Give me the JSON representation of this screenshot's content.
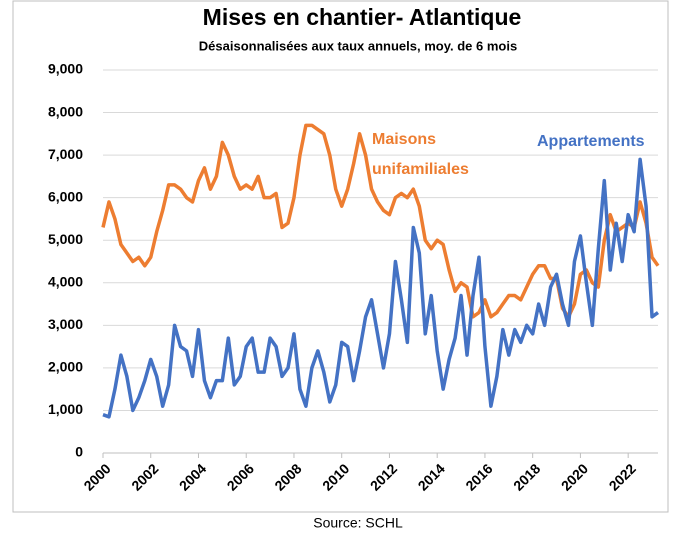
{
  "chart_data": {
    "type": "line",
    "title": "Mises en chantier- Atlantique",
    "subtitle": "Désaisonnalisées aux taux annuels, moy. de 6 mois",
    "source": "Source: SCHL",
    "x": [
      2000,
      2000.25,
      2000.5,
      2000.75,
      2001,
      2001.25,
      2001.5,
      2001.75,
      2002,
      2002.25,
      2002.5,
      2002.75,
      2003,
      2003.25,
      2003.5,
      2003.75,
      2004,
      2004.25,
      2004.5,
      2004.75,
      2005,
      2005.25,
      2005.5,
      2005.75,
      2006,
      2006.25,
      2006.5,
      2006.75,
      2007,
      2007.25,
      2007.5,
      2007.75,
      2008,
      2008.25,
      2008.5,
      2008.75,
      2009,
      2009.25,
      2009.5,
      2009.75,
      2010,
      2010.25,
      2010.5,
      2010.75,
      2011,
      2011.25,
      2011.5,
      2011.75,
      2012,
      2012.25,
      2012.5,
      2012.75,
      2013,
      2013.25,
      2013.5,
      2013.75,
      2014,
      2014.25,
      2014.5,
      2014.75,
      2015,
      2015.25,
      2015.5,
      2015.75,
      2016,
      2016.25,
      2016.5,
      2016.75,
      2017,
      2017.25,
      2017.5,
      2017.75,
      2018,
      2018.25,
      2018.5,
      2018.75,
      2019,
      2019.25,
      2019.5,
      2019.75,
      2020,
      2020.25,
      2020.5,
      2020.75,
      2021,
      2021.25,
      2021.5,
      2021.75,
      2022,
      2022.25,
      2022.5,
      2022.75,
      2023,
      2023.25
    ],
    "series": [
      {
        "name": "Maisons unifamiliales",
        "color": "#ed7d31",
        "values": [
          5300,
          5900,
          5500,
          4900,
          4700,
          4500,
          4600,
          4400,
          4600,
          5200,
          5700,
          6300,
          6300,
          6200,
          6000,
          5900,
          6400,
          6700,
          6200,
          6500,
          7300,
          7000,
          6500,
          6200,
          6300,
          6200,
          6500,
          6000,
          6000,
          6100,
          5300,
          5400,
          6000,
          7000,
          7700,
          7700,
          7600,
          7500,
          7000,
          6200,
          5800,
          6200,
          6800,
          7500,
          7000,
          6200,
          5900,
          5700,
          5600,
          6000,
          6100,
          6000,
          6200,
          5800,
          5000,
          4800,
          5000,
          4900,
          4300,
          3800,
          4000,
          3900,
          3200,
          3300,
          3600,
          3200,
          3300,
          3500,
          3700,
          3700,
          3600,
          3900,
          4200,
          4400,
          4400,
          4100,
          4100,
          3400,
          3200,
          3500,
          4200,
          4300,
          4000,
          3900,
          5000,
          5600,
          5200,
          5300,
          5400,
          5300,
          5900,
          5400,
          4600,
          4400
        ]
      },
      {
        "name": "Appartements",
        "color": "#4472c4",
        "values": [
          900,
          850,
          1500,
          2300,
          1800,
          1000,
          1300,
          1700,
          2200,
          1800,
          1100,
          1600,
          3000,
          2500,
          2400,
          1800,
          2900,
          1700,
          1300,
          1700,
          1700,
          2700,
          1600,
          1800,
          2500,
          2700,
          1900,
          1900,
          2700,
          2500,
          1800,
          2000,
          2800,
          1500,
          1100,
          2000,
          2400,
          1900,
          1200,
          1600,
          2600,
          2500,
          1700,
          2400,
          3200,
          3600,
          2800,
          2000,
          2800,
          4500,
          3600,
          2600,
          5300,
          4700,
          2800,
          3700,
          2400,
          1500,
          2200,
          2700,
          3700,
          2300,
          3700,
          4600,
          2500,
          1100,
          1800,
          2900,
          2300,
          2900,
          2600,
          3000,
          2800,
          3500,
          3000,
          3900,
          4200,
          3500,
          3000,
          4500,
          5100,
          4000,
          3000,
          4800,
          6400,
          4300,
          5400,
          4500,
          5600,
          5200,
          6900,
          5800,
          3200,
          3300
        ]
      }
    ],
    "xlim": [
      2000,
      2023.25
    ],
    "xticks": [
      2000,
      2002,
      2004,
      2006,
      2008,
      2010,
      2012,
      2014,
      2016,
      2018,
      2020,
      2022
    ],
    "ylim": [
      0,
      9000
    ],
    "yticks": [
      0,
      {
        "value": 1000,
        "label": "1,000"
      },
      {
        "value": 2000,
        "label": "2,000"
      },
      {
        "value": 3000,
        "label": "3,000"
      },
      {
        "value": 4000,
        "label": "4,000"
      },
      {
        "value": 5000,
        "label": "5,000"
      },
      {
        "value": 6000,
        "label": "6,000"
      },
      {
        "value": 7000,
        "label": "7,000"
      },
      {
        "value": 8000,
        "label": "8,000"
      },
      {
        "value": 9000,
        "label": "9,000"
      }
    ],
    "grid": true
  }
}
